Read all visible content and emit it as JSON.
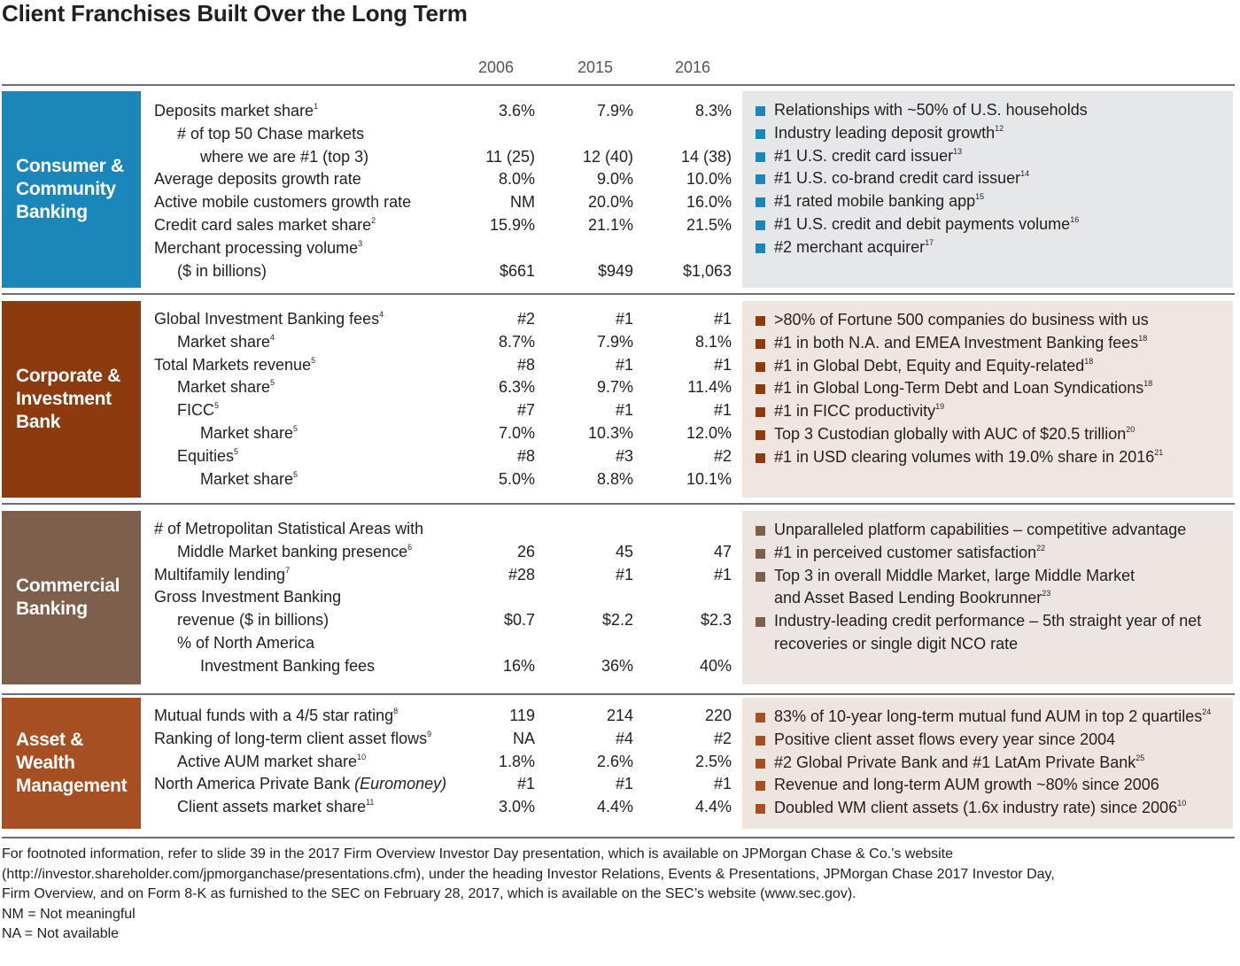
{
  "title": "Client Franchises Built Over the Long Term",
  "years": [
    "2006",
    "2015",
    "2016"
  ],
  "segments": [
    {
      "name": "Consumer &\nCommunity\nBanking",
      "color": "#1a86b9",
      "highlight_bg": "#e6e7e8",
      "rows": [
        {
          "label": "Deposits market share",
          "sup": "1",
          "indent": 0,
          "values": [
            "3.6%",
            "7.9%",
            "8.3%"
          ]
        },
        {
          "label": "# of top 50 Chase markets",
          "sup": "",
          "indent": 1,
          "values": [
            "",
            "",
            ""
          ]
        },
        {
          "label": "where we are #1 (top 3)",
          "sup": "",
          "indent": 2,
          "values": [
            "11 (25)",
            "12 (40)",
            "14 (38)"
          ]
        },
        {
          "label": "Average deposits growth rate",
          "sup": "",
          "indent": 0,
          "values": [
            "8.0%",
            "9.0%",
            "10.0%"
          ]
        },
        {
          "label": "Active mobile customers growth rate",
          "sup": "",
          "indent": 0,
          "values": [
            "NM",
            "20.0%",
            "16.0%"
          ]
        },
        {
          "label": "Credit card sales market share",
          "sup": "2",
          "indent": 0,
          "values": [
            "15.9%",
            "21.1%",
            "21.5%"
          ]
        },
        {
          "label": "Merchant processing volume",
          "sup": "3",
          "indent": 0,
          "values": [
            "",
            "",
            ""
          ]
        },
        {
          "label": "($ in billions)",
          "sup": "",
          "indent": 1,
          "values": [
            "$661",
            "$949",
            "$1,063"
          ]
        }
      ],
      "highlights": [
        {
          "lines": [
            "Relationships with ~50% of U.S. households"
          ],
          "sup": ""
        },
        {
          "lines": [
            "Industry leading deposit growth"
          ],
          "sup": "12"
        },
        {
          "lines": [
            "#1 U.S. credit card issuer"
          ],
          "sup": "13"
        },
        {
          "lines": [
            "#1 U.S. co-brand credit card issuer"
          ],
          "sup": "14"
        },
        {
          "lines": [
            "#1 rated mobile banking app"
          ],
          "sup": "15"
        },
        {
          "lines": [
            "#1 U.S. credit and debit payments volume"
          ],
          "sup": "16"
        },
        {
          "lines": [
            "#2 merchant acquirer"
          ],
          "sup": "17"
        }
      ]
    },
    {
      "name": "Corporate &\nInvestment\nBank",
      "color": "#8c3a0e",
      "highlight_bg": "#efe6e0",
      "rows": [
        {
          "label": "Global Investment Banking fees",
          "sup": "4",
          "indent": 0,
          "values": [
            "#2",
            "#1",
            "#1"
          ]
        },
        {
          "label": "Market share",
          "sup": "4",
          "indent": 1,
          "values": [
            "8.7%",
            "7.9%",
            "8.1%"
          ]
        },
        {
          "label": "Total Markets revenue",
          "sup": "5",
          "indent": 0,
          "values": [
            "#8",
            "#1",
            "#1"
          ]
        },
        {
          "label": "Market share",
          "sup": "5",
          "indent": 1,
          "values": [
            "6.3%",
            "9.7%",
            "11.4%"
          ]
        },
        {
          "label": "FICC",
          "sup": "5",
          "indent": 1,
          "values": [
            "#7",
            "#1",
            "#1"
          ]
        },
        {
          "label": "Market share",
          "sup": "5",
          "indent": 2,
          "values": [
            "7.0%",
            "10.3%",
            "12.0%"
          ]
        },
        {
          "label": "Equities",
          "sup": "5",
          "indent": 1,
          "values": [
            "#8",
            "#3",
            "#2"
          ]
        },
        {
          "label": "Market share",
          "sup": "5",
          "indent": 2,
          "values": [
            "5.0%",
            "8.8%",
            "10.1%"
          ]
        }
      ],
      "highlights": [
        {
          "lines": [
            ">80% of Fortune 500 companies do business with us"
          ],
          "sup": ""
        },
        {
          "lines": [
            "#1 in both N.A. and EMEA Investment Banking fees"
          ],
          "sup": "18"
        },
        {
          "lines": [
            "#1 in Global Debt, Equity and Equity-related"
          ],
          "sup": "18"
        },
        {
          "lines": [
            "#1 in Global Long-Term Debt and Loan Syndications"
          ],
          "sup": "18"
        },
        {
          "lines": [
            "#1 in FICC productivity"
          ],
          "sup": "19"
        },
        {
          "lines": [
            "Top 3 Custodian globally with AUC of $20.5 trillion"
          ],
          "sup": "20"
        },
        {
          "lines": [
            "#1 in USD clearing volumes with 19.0% share in 2016"
          ],
          "sup": "21"
        }
      ]
    },
    {
      "name": "Commercial\nBanking",
      "color": "#7d5f4c",
      "highlight_bg": "#ede5e1",
      "rows": [
        {
          "label": "# of Metropolitan Statistical Areas with",
          "sup": "",
          "indent": 0,
          "values": [
            "",
            "",
            ""
          ]
        },
        {
          "label": "Middle Market banking presence",
          "sup": "6",
          "indent": 1,
          "values": [
            "26",
            "45",
            "47"
          ]
        },
        {
          "label": "Multifamily lending",
          "sup": "7",
          "indent": 0,
          "values": [
            "#28",
            "#1",
            "#1"
          ]
        },
        {
          "label": "Gross Investment Banking",
          "sup": "",
          "indent": 0,
          "values": [
            "",
            "",
            ""
          ]
        },
        {
          "label": "revenue ($ in billions)",
          "sup": "",
          "indent": 1,
          "values": [
            "$0.7",
            "$2.2",
            "$2.3"
          ]
        },
        {
          "label": "% of North America",
          "sup": "",
          "indent": 1,
          "values": [
            "",
            "",
            ""
          ]
        },
        {
          "label": "Investment Banking fees",
          "sup": "",
          "indent": 2,
          "values": [
            "16%",
            "36%",
            "40%"
          ]
        }
      ],
      "highlights": [
        {
          "lines": [
            "Unparalleled platform capabilities – competitive advantage"
          ],
          "sup": ""
        },
        {
          "lines": [
            "#1 in perceived customer satisfaction"
          ],
          "sup": "22"
        },
        {
          "lines": [
            "Top 3 in overall Middle Market, large Middle Market",
            "and Asset Based Lending Bookrunner"
          ],
          "sup": "23"
        },
        {
          "lines": [
            "Industry-leading credit performance – 5th straight year of net",
            "recoveries or single digit NCO rate"
          ],
          "sup": ""
        }
      ]
    },
    {
      "name": "Asset & Wealth\nManagement",
      "color": "#a54f22",
      "highlight_bg": "#efe5df",
      "rows": [
        {
          "label": "Mutual funds with a 4/5 star rating",
          "sup": "8",
          "indent": 0,
          "values": [
            "119",
            "214",
            "220"
          ]
        },
        {
          "label": "Ranking of long-term client asset flows",
          "sup": "9",
          "indent": 0,
          "values": [
            "NA",
            "#4",
            "#2"
          ]
        },
        {
          "label": "Active AUM market share",
          "sup": "10",
          "indent": 1,
          "values": [
            "1.8%",
            "2.6%",
            "2.5%"
          ]
        },
        {
          "label": "North America Private Bank ",
          "italic": "(Euromoney)",
          "sup": "",
          "indent": 0,
          "values": [
            "#1",
            "#1",
            "#1"
          ]
        },
        {
          "label": "Client assets market share",
          "sup": "11",
          "indent": 1,
          "values": [
            "3.0%",
            "4.4%",
            "4.4%"
          ]
        }
      ],
      "highlights": [
        {
          "lines": [
            "83% of 10-year long-term mutual fund AUM in top 2 quartiles"
          ],
          "sup": "24"
        },
        {
          "lines": [
            "Positive client asset flows every year since 2004"
          ],
          "sup": ""
        },
        {
          "lines": [
            "#2 Global Private Bank and #1 LatAm Private Bank"
          ],
          "sup": "25"
        },
        {
          "lines": [
            "Revenue and long-term AUM growth ~80% since 2006"
          ],
          "sup": ""
        },
        {
          "lines": [
            "Doubled WM client assets (1.6x industry rate) since 2006"
          ],
          "sup": "10"
        }
      ]
    }
  ],
  "footnotes": [
    "For footnoted information, refer to slide 39 in the 2017 Firm Overview Investor Day presentation, which is available on JPMorgan Chase & Co.’s website",
    "(http://investor.shareholder.com/jpmorganchase/presentations.cfm), under the heading Investor Relations, Events & Presentations, JPMorgan Chase 2017 Investor Day,",
    "Firm Overview, and on Form 8-K as furnished to the SEC on February 28, 2017, which is available on the SEC’s website (www.sec.gov).",
    "NM = Not meaningful",
    "NA = Not available"
  ]
}
